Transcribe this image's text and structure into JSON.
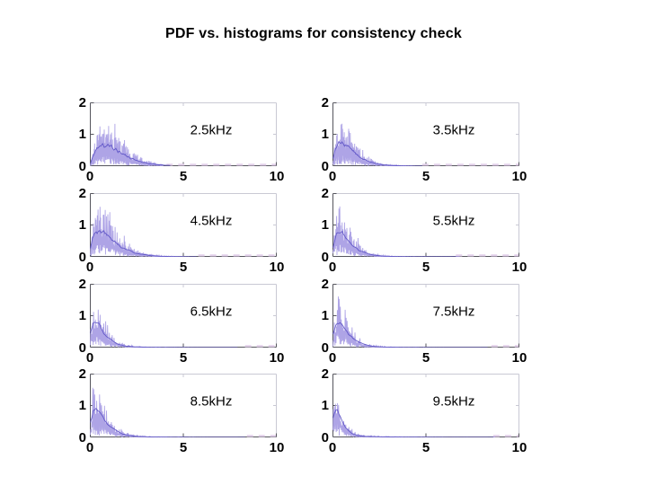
{
  "title": "PDF vs. histograms for consistency check",
  "colors": {
    "background": "#ffffff",
    "text": "#000000",
    "histogram_trace": "#aea4e6",
    "pdf_line": "#5a50c4",
    "baseline_dash": "#e3d0ea",
    "axis": "#55555d",
    "box": "#c9c9d4"
  },
  "chart_data": {
    "type": "line",
    "title": "PDF vs. histograms for consistency check",
    "description": "Eight panels; each overlays a fitted PDF (dark blue line) on a noisy normalized histogram (light purple spiky trace) for one frequency band. Distributions peak near x=0-1 and decay toward 0; higher frequency bands have heavier tails. Faint light-purple dashes mark the near-zero baseline beyond the populated range.",
    "xlim": [
      0,
      10
    ],
    "ylim": [
      0,
      2
    ],
    "xticks": [
      "0",
      "5",
      "10"
    ],
    "yticks": [
      "0",
      "1",
      "2"
    ],
    "grid": false,
    "legend": false,
    "panels": [
      {
        "label": "2.5kHz",
        "seed": 11,
        "peak": 0.92,
        "peak_x": 0.75,
        "shape": 1.15,
        "tail_amp": 0.015,
        "tail_tau": 1.2,
        "noise_end": 3.9,
        "dash_start": 4.1
      },
      {
        "label": "3.5kHz",
        "seed": 22,
        "peak": 1.02,
        "peak_x": 0.45,
        "shape": 0.9,
        "tail_amp": 0.03,
        "tail_tau": 1.4,
        "noise_end": 4.4,
        "dash_start": 4.8
      },
      {
        "label": "4.5kHz",
        "seed": 33,
        "peak": 1.12,
        "peak_x": 0.5,
        "shape": 0.85,
        "tail_amp": 0.04,
        "tail_tau": 1.6,
        "noise_end": 5.3,
        "dash_start": 5.8
      },
      {
        "label": "5.5kHz",
        "seed": 44,
        "peak": 1.05,
        "peak_x": 0.35,
        "shape": 0.8,
        "tail_amp": 0.05,
        "tail_tau": 1.8,
        "noise_end": 6.4,
        "dash_start": 6.6
      },
      {
        "label": "6.5kHz",
        "seed": 55,
        "peak": 1.07,
        "peak_x": 0.28,
        "shape": 0.78,
        "tail_amp": 0.06,
        "tail_tau": 2.0,
        "noise_end": 7.5,
        "dash_start": 8.3
      },
      {
        "label": "7.5kHz",
        "seed": 66,
        "peak": 1.07,
        "peak_x": 0.3,
        "shape": 0.78,
        "tail_amp": 0.06,
        "tail_tau": 2.0,
        "noise_end": 7.9,
        "dash_start": 8.5
      },
      {
        "label": "8.5kHz",
        "seed": 77,
        "peak": 1.12,
        "peak_x": 0.3,
        "shape": 0.72,
        "tail_amp": 0.07,
        "tail_tau": 2.1,
        "noise_end": 7.9,
        "dash_start": 8.4
      },
      {
        "label": "9.5kHz",
        "seed": 88,
        "peak": 1.18,
        "peak_x": 0.16,
        "shape": 0.62,
        "tail_amp": 0.08,
        "tail_tau": 2.2,
        "noise_end": 8.3,
        "dash_start": 8.6
      }
    ]
  }
}
